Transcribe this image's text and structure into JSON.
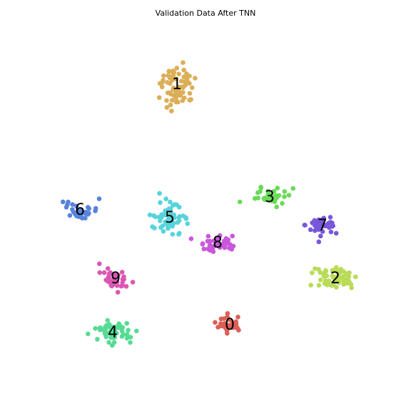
{
  "chart_data": {
    "type": "scatter",
    "title": "Validation Data After TNN",
    "xlabel": "",
    "ylabel": "",
    "axes_visible": false,
    "grid": false,
    "legend": "none",
    "clusters": [
      {
        "label": "0",
        "color": "#db5f57",
        "center": [
          322,
          455
        ],
        "spread": [
          10,
          6
        ],
        "n": 30
      },
      {
        "label": "1",
        "color": "#dbae57",
        "center": [
          248,
          118
        ],
        "spread": [
          12,
          15
        ],
        "n": 70
      },
      {
        "label": "2",
        "color": "#b9db57",
        "center": [
          470,
          390
        ],
        "spread": [
          15,
          9
        ],
        "n": 60
      },
      {
        "label": "3",
        "color": "#69db57",
        "center": [
          378,
          276
        ],
        "spread": [
          12,
          6
        ],
        "n": 40
      },
      {
        "label": "4",
        "color": "#57db94",
        "center": [
          158,
          466
        ],
        "spread": [
          12,
          8
        ],
        "n": 55
      },
      {
        "label": "5",
        "color": "#57d3db",
        "center": [
          238,
          305
        ],
        "spread": [
          14,
          10
        ],
        "n": 55
      },
      {
        "label": "6",
        "color": "#5784db",
        "center": [
          112,
          294
        ],
        "spread": [
          12,
          6
        ],
        "n": 30
      },
      {
        "label": "7",
        "color": "#7957db",
        "center": [
          452,
          316
        ],
        "spread": [
          12,
          7
        ],
        "n": 45
      },
      {
        "label": "8",
        "color": "#c957db",
        "center": [
          305,
          340
        ],
        "spread": [
          14,
          6
        ],
        "n": 40
      },
      {
        "label": "9",
        "color": "#db57b2",
        "center": [
          162,
          390
        ],
        "spread": [
          10,
          8
        ],
        "n": 40
      }
    ]
  }
}
